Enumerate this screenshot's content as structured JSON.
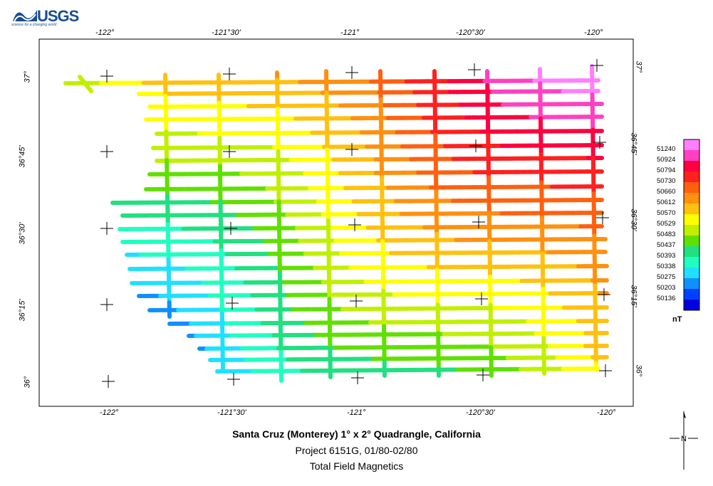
{
  "logo": {
    "text": "USGS",
    "tagline": "science for a changing world"
  },
  "map": {
    "top_lon_labels": [
      "-122°",
      "-121°30'",
      "-121°",
      "-120°30'",
      "-120°"
    ],
    "bottom_lon_labels": [
      "-122°",
      "-121°30'",
      "-121°",
      "-120°30'",
      "-120°"
    ],
    "left_lat_labels": [
      "37°",
      "36°45'",
      "36°30'",
      "36°15'",
      "36°"
    ],
    "right_lat_labels": [
      "37°",
      "36°45'",
      "36°30'",
      "36°15'",
      "36°"
    ]
  },
  "legend": {
    "unit": "nT",
    "values": [
      "51240",
      "50924",
      "50794",
      "50730",
      "50660",
      "50612",
      "50570",
      "50529",
      "50483",
      "50437",
      "50393",
      "50338",
      "50275",
      "50203",
      "50136"
    ],
    "colors": [
      "#ff80ff",
      "#ff40c0",
      "#ff0040",
      "#ff2020",
      "#ff6010",
      "#ff9010",
      "#ffc010",
      "#ffff00",
      "#c0f000",
      "#60e000",
      "#20e080",
      "#20ffc0",
      "#20e0ff",
      "#1090ff",
      "#0040ff",
      "#0000e0"
    ]
  },
  "titles": {
    "line1": "Santa Cruz (Monterey) 1° x 2° Quadrangle, California",
    "line2": "Project 6151G, 01/80-02/80",
    "line3": "Total Field Magnetics"
  },
  "north_arrow": {
    "label": "N"
  }
}
